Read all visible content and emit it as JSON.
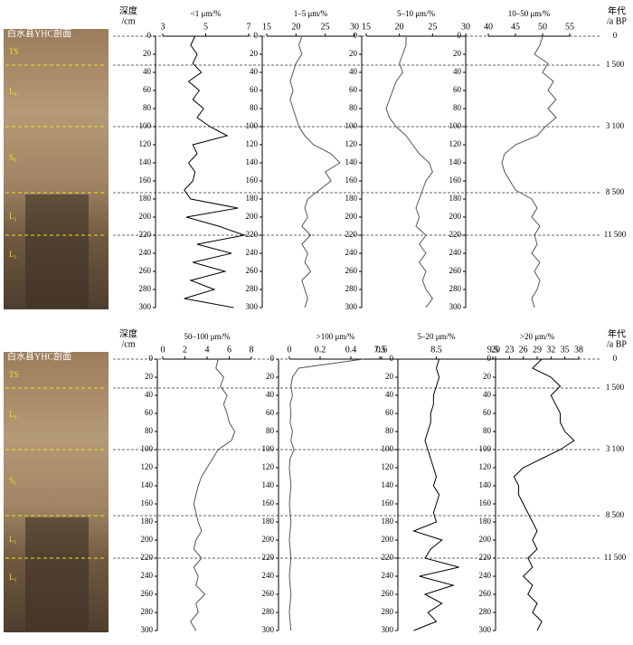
{
  "photo": {
    "title": "白水县YHC剖面",
    "layers": [
      "TS",
      "L₀",
      "S₀",
      "L₁",
      "L₁"
    ]
  },
  "depth_title": [
    "深度",
    "/cm"
  ],
  "age_title": [
    "年代",
    "/a BP"
  ],
  "ages": [
    {
      "depth": 0,
      "label": "0"
    },
    {
      "depth": 32,
      "label": "1 500"
    },
    {
      "depth": 100,
      "label": "3 100"
    },
    {
      "depth": 173,
      "label": "8 500"
    },
    {
      "depth": 220,
      "label": "11 500"
    }
  ],
  "chart_data": [
    {
      "type": "line",
      "title": "<1 μm/%",
      "xlim": [
        3,
        7
      ],
      "xticks": [
        3,
        5,
        7
      ],
      "ylim": [
        0,
        300
      ],
      "yticks": [
        0,
        20,
        40,
        60,
        80,
        100,
        120,
        140,
        160,
        180,
        200,
        220,
        240,
        260,
        280,
        300
      ],
      "y": [
        0,
        10,
        20,
        30,
        40,
        50,
        60,
        70,
        80,
        90,
        100,
        110,
        120,
        130,
        140,
        150,
        160,
        170,
        180,
        190,
        200,
        210,
        220,
        230,
        240,
        250,
        260,
        270,
        280,
        290,
        300
      ],
      "values": [
        4.5,
        4.3,
        4.6,
        4.4,
        4.8,
        4.2,
        4.7,
        4.4,
        4.9,
        4.6,
        5.2,
        6.0,
        4.4,
        4.6,
        4.2,
        4.5,
        4.4,
        4.0,
        4.3,
        6.5,
        4.1,
        5.6,
        6.8,
        4.6,
        6.2,
        4.4,
        5.9,
        4.3,
        5.4,
        4.0,
        6.3
      ],
      "color": "#000000"
    },
    {
      "type": "line",
      "title": "1–5 μm/%",
      "xlim": [
        15,
        30
      ],
      "xticks": [
        15,
        20,
        25,
        30
      ],
      "ylim": [
        0,
        300
      ],
      "yticks": [
        0,
        20,
        40,
        60,
        80,
        100,
        120,
        140,
        160,
        180,
        200,
        220,
        240,
        260,
        280,
        300
      ],
      "y": [
        0,
        10,
        20,
        30,
        40,
        50,
        60,
        70,
        80,
        90,
        100,
        110,
        120,
        130,
        140,
        150,
        160,
        170,
        180,
        190,
        200,
        210,
        220,
        230,
        240,
        250,
        260,
        270,
        280,
        290,
        300
      ],
      "values": [
        21,
        20.5,
        21,
        20,
        19.5,
        19,
        19.5,
        19,
        19.5,
        20,
        20.5,
        21.5,
        23,
        26,
        27.5,
        25,
        26,
        24,
        22,
        21.5,
        22,
        21,
        22.5,
        21,
        22,
        21.5,
        22.5,
        21,
        21.5,
        22,
        21.5
      ],
      "color": "#555555"
    },
    {
      "type": "line",
      "title": "5–10 μm/%",
      "xlim": [
        15,
        30
      ],
      "xticks": [
        15,
        20,
        25,
        30
      ],
      "ylim": [
        0,
        300
      ],
      "yticks": [
        0,
        20,
        40,
        60,
        80,
        100,
        120,
        140,
        160,
        180,
        200,
        220,
        240,
        260,
        280,
        300
      ],
      "y": [
        0,
        10,
        20,
        30,
        40,
        50,
        60,
        70,
        80,
        90,
        100,
        110,
        120,
        130,
        140,
        150,
        160,
        170,
        180,
        190,
        200,
        210,
        220,
        230,
        240,
        250,
        260,
        270,
        280,
        290,
        300
      ],
      "values": [
        21,
        21,
        20.5,
        20,
        20.5,
        19.5,
        19,
        18.5,
        18,
        18.5,
        19.5,
        21,
        22,
        23,
        24.5,
        25,
        24,
        23.5,
        23,
        22.5,
        23,
        22.5,
        24,
        23,
        24,
        23,
        24,
        23.5,
        24,
        25,
        24
      ],
      "color": "#555555"
    },
    {
      "type": "line",
      "title": "10–50 μm/%",
      "xlim": [
        40,
        55
      ],
      "xticks": [
        40,
        45,
        50,
        55
      ],
      "ylim": [
        0,
        300
      ],
      "yticks": [
        0,
        20,
        40,
        60,
        80,
        100,
        120,
        140,
        160,
        180,
        200,
        220,
        240,
        260,
        280,
        300
      ],
      "y": [
        0,
        10,
        20,
        30,
        40,
        50,
        60,
        70,
        80,
        90,
        100,
        110,
        120,
        130,
        140,
        150,
        160,
        170,
        180,
        190,
        200,
        210,
        220,
        230,
        240,
        250,
        260,
        270,
        280,
        290,
        300
      ],
      "values": [
        50,
        49.5,
        48.5,
        51,
        50,
        52,
        51,
        52.5,
        51,
        52.5,
        50.5,
        49,
        45,
        43,
        42.5,
        43,
        44,
        45,
        48,
        49,
        48,
        49.5,
        48.5,
        49,
        48,
        49.5,
        48.5,
        49.5,
        49,
        48,
        48.5
      ],
      "color": "#555555"
    },
    {
      "type": "line",
      "title": "50–100 μm/%",
      "xlim": [
        0,
        8
      ],
      "xticks": [
        0,
        2,
        4,
        6,
        8
      ],
      "ylim": [
        0,
        300
      ],
      "yticks": [
        0,
        20,
        40,
        60,
        80,
        100,
        120,
        140,
        160,
        180,
        200,
        220,
        240,
        260,
        280,
        300
      ],
      "y": [
        0,
        10,
        20,
        30,
        40,
        50,
        60,
        70,
        80,
        90,
        100,
        110,
        120,
        130,
        140,
        150,
        160,
        170,
        180,
        190,
        200,
        210,
        220,
        230,
        240,
        250,
        260,
        270,
        280,
        290,
        300
      ],
      "values": [
        5,
        4.8,
        5.5,
        5.2,
        5.8,
        5.5,
        5.8,
        6,
        6.5,
        6.2,
        5,
        4.5,
        4,
        3.5,
        3.2,
        3,
        2.8,
        3,
        3.2,
        3.5,
        3,
        2.8,
        3.5,
        2.8,
        3.2,
        3,
        3.8,
        3,
        3.2,
        2.5,
        3
      ],
      "color": "#555555"
    },
    {
      "type": "line",
      "title": ">100 μm/%",
      "xlim": [
        0,
        0.6
      ],
      "xticks": [
        0,
        0.2,
        0.4,
        0.6
      ],
      "ylim": [
        0,
        300
      ],
      "yticks": [
        0,
        20,
        40,
        60,
        80,
        100,
        120,
        140,
        160,
        180,
        200,
        220,
        240,
        260,
        280,
        300
      ],
      "y": [
        0,
        10,
        20,
        30,
        40,
        50,
        60,
        70,
        80,
        90,
        100,
        110,
        120,
        130,
        140,
        150,
        160,
        170,
        180,
        190,
        200,
        210,
        220,
        230,
        240,
        250,
        260,
        270,
        280,
        290,
        300
      ],
      "values": [
        0.48,
        0.06,
        0.02,
        0.01,
        0.02,
        0.005,
        0.01,
        0.005,
        0.02,
        0.01,
        0.03,
        0.005,
        0,
        0.005,
        0.01,
        0.005,
        0,
        0.005,
        0.01,
        0.005,
        0,
        0.005,
        0.01,
        0.005,
        0,
        0.005,
        0.01,
        0.005,
        0,
        0.005,
        0.01
      ],
      "color": "#555555"
    },
    {
      "type": "line",
      "title": "5–20 μm/%",
      "xlim": [
        7.5,
        9.5
      ],
      "xticks": [
        7.5,
        8.5,
        9.5
      ],
      "ylim": [
        0,
        300
      ],
      "yticks": [
        0,
        20,
        40,
        60,
        80,
        100,
        120,
        140,
        160,
        180,
        200,
        220,
        240,
        260,
        280,
        300
      ],
      "y": [
        0,
        10,
        20,
        30,
        40,
        50,
        60,
        70,
        80,
        90,
        100,
        110,
        120,
        130,
        140,
        150,
        160,
        170,
        180,
        190,
        200,
        210,
        220,
        230,
        240,
        250,
        260,
        270,
        280,
        290,
        300
      ],
      "values": [
        8.55,
        8.5,
        8.55,
        8.5,
        8.45,
        8.45,
        8.4,
        8.4,
        8.35,
        8.3,
        8.35,
        8.4,
        8.45,
        8.5,
        8.45,
        8.55,
        8.5,
        8.45,
        8.5,
        8.1,
        8.6,
        8.4,
        8.3,
        8.9,
        8.2,
        8.8,
        8.3,
        8.6,
        8.35,
        8.5,
        8.1
      ],
      "color": "#000000"
    },
    {
      "type": "line",
      "title": ">20 μm/%",
      "xlim": [
        20,
        38
      ],
      "xticks": [
        20,
        23,
        26,
        29,
        32,
        35,
        38
      ],
      "ylim": [
        0,
        300
      ],
      "yticks": [
        0,
        20,
        40,
        60,
        80,
        100,
        120,
        140,
        160,
        180,
        200,
        220,
        240,
        260,
        280,
        300
      ],
      "y": [
        0,
        10,
        20,
        30,
        40,
        50,
        60,
        70,
        80,
        90,
        100,
        110,
        120,
        130,
        140,
        150,
        160,
        170,
        180,
        190,
        200,
        210,
        220,
        230,
        240,
        250,
        260,
        270,
        280,
        290,
        300
      ],
      "values": [
        30,
        28,
        32,
        34,
        32,
        33,
        34,
        34,
        35,
        37,
        34,
        30,
        26,
        24,
        25,
        25,
        26,
        27,
        28,
        29,
        28,
        29,
        27,
        28,
        26,
        28,
        27,
        29,
        28,
        30,
        29
      ],
      "color": "#000000"
    }
  ]
}
